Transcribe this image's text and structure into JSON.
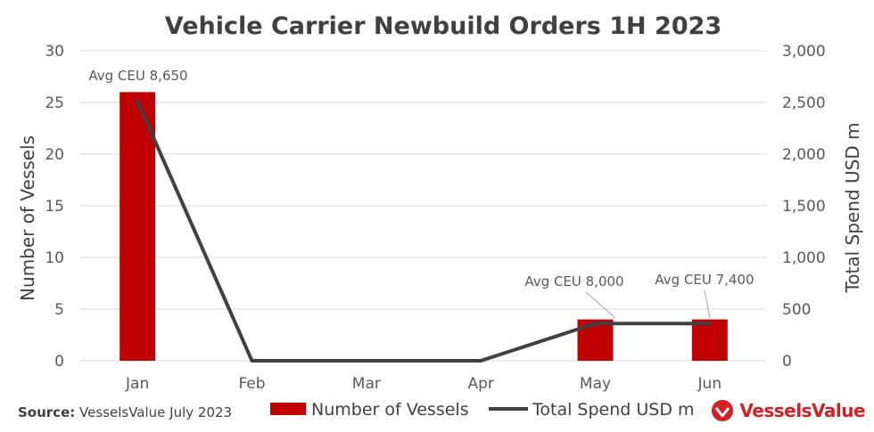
{
  "colors": {
    "bar": "#c00000",
    "line": "#404040",
    "grid": "#d9d9d9",
    "brand": "#d31f26"
  },
  "footer": {
    "source_label": "Source:",
    "source_text": "VesselsValue July 2023",
    "brand": "VesselsValue"
  },
  "chart_data": {
    "type": "bar",
    "title": "Vehicle Carrier Newbuild Orders 1H 2023",
    "categories": [
      "Jan",
      "Feb",
      "Mar",
      "Apr",
      "May",
      "Jun"
    ],
    "series": [
      {
        "name": "Number of Vessels",
        "type": "bar",
        "axis": "left",
        "values": [
          26,
          0,
          0,
          0,
          4,
          4
        ]
      },
      {
        "name": "Total Spend USD m",
        "type": "line",
        "axis": "right",
        "values": [
          2510,
          0,
          0,
          0,
          360,
          360
        ]
      }
    ],
    "ylabel": "Number of Vessels",
    "ylim": [
      0,
      30
    ],
    "y_ticks": [
      0,
      5,
      10,
      15,
      20,
      25,
      30
    ],
    "y_tick_labels": [
      "0",
      "5",
      "10",
      "15",
      "20",
      "25",
      "30"
    ],
    "y2label": "Total Spend USD m",
    "y2lim": [
      0,
      3000
    ],
    "y2_ticks": [
      0,
      500,
      1000,
      1500,
      2000,
      2500,
      3000
    ],
    "y2_tick_labels": [
      "0",
      "500",
      "1,000",
      "1,500",
      "2,000",
      "2,500",
      "3,000"
    ],
    "grid": true,
    "legend_position": "bottom",
    "annotations": [
      {
        "category": "Jan",
        "text": "Avg CEU 8,650"
      },
      {
        "category": "May",
        "text": "Avg CEU 8,000"
      },
      {
        "category": "Jun",
        "text": "Avg CEU 7,400"
      }
    ]
  }
}
